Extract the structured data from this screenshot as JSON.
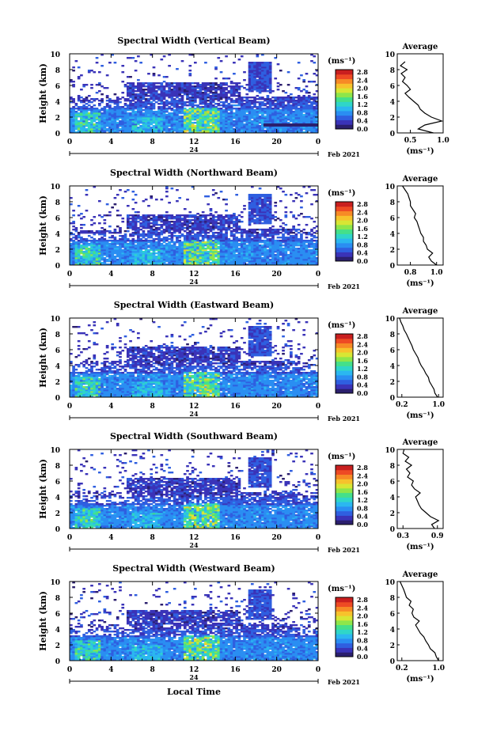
{
  "x_title": "Local Time",
  "colorbar": {
    "unit": "(ms⁻¹)",
    "ticks": [
      "2.8",
      "2.4",
      "2.0",
      "1.6",
      "1.2",
      "0.8",
      "0.4",
      "0.0"
    ],
    "colors": [
      "#2b1f6e",
      "#3a33b8",
      "#2f5fe0",
      "#2a8ef2",
      "#2bb7f0",
      "#2fd6c8",
      "#44e08a",
      "#8ee64a",
      "#d8e634",
      "#f7c22c",
      "#f78a26",
      "#ee4a24",
      "#c91f1f"
    ]
  },
  "chart_data": [
    {
      "type": "heatmap",
      "title": "Spectral Width (Vertical Beam)",
      "ylabel": "Height (km)",
      "xlabel": "Local Time",
      "x_ticks": [
        "0",
        "4",
        "8",
        "12",
        "16",
        "20",
        "0"
      ],
      "y_ticks": [
        "0",
        "2",
        "4",
        "6",
        "8",
        "10"
      ],
      "xlim": [
        0,
        24
      ],
      "ylim": [
        0,
        10
      ],
      "date_day": "24",
      "date_month": "Feb 2021",
      "average": {
        "title": "Average",
        "xlabel": "(ms⁻¹)",
        "x_ticks": [
          "0.5",
          "1.0"
        ],
        "xlim": [
          0.3,
          1.0
        ],
        "height": [
          0,
          0.5,
          1,
          1.5,
          2,
          2.5,
          3,
          3.5,
          4,
          4.5,
          5,
          5.5,
          6,
          6.5,
          7,
          7.5,
          8,
          8.5,
          9
        ],
        "value": [
          0.85,
          0.62,
          0.72,
          0.98,
          0.82,
          0.72,
          0.65,
          0.62,
          0.55,
          0.48,
          0.42,
          0.5,
          0.45,
          0.38,
          0.42,
          0.36,
          0.45,
          0.35,
          0.42
        ]
      }
    },
    {
      "type": "heatmap",
      "title": "Spectral Width (Northward Beam)",
      "ylabel": "Height (km)",
      "xlabel": "Local Time",
      "x_ticks": [
        "0",
        "4",
        "8",
        "12",
        "16",
        "20",
        "0"
      ],
      "y_ticks": [
        "0",
        "2",
        "4",
        "6",
        "8",
        "10"
      ],
      "xlim": [
        0,
        24
      ],
      "ylim": [
        0,
        10
      ],
      "date_day": "24",
      "date_month": "Feb 2021",
      "average": {
        "title": "Average",
        "xlabel": "(ms⁻¹)",
        "x_ticks": [
          "0.8",
          "1.0"
        ],
        "xlim": [
          0.7,
          1.05
        ],
        "height": [
          0,
          0.5,
          1,
          1.5,
          2,
          2.5,
          3,
          3.5,
          4,
          4.5,
          5,
          5.5,
          6,
          6.5,
          7,
          7.5,
          8,
          8.5,
          9,
          9.5,
          10
        ],
        "value": [
          1.0,
          0.96,
          0.94,
          0.97,
          0.93,
          0.92,
          0.9,
          0.9,
          0.88,
          0.87,
          0.86,
          0.85,
          0.83,
          0.84,
          0.82,
          0.8,
          0.8,
          0.79,
          0.78,
          0.76,
          0.74
        ]
      }
    },
    {
      "type": "heatmap",
      "title": "Spectral Width (Eastward Beam)",
      "ylabel": "Height (km)",
      "xlabel": "Local Time",
      "x_ticks": [
        "0",
        "4",
        "8",
        "12",
        "16",
        "20",
        "0"
      ],
      "y_ticks": [
        "0",
        "2",
        "4",
        "6",
        "8",
        "10"
      ],
      "xlim": [
        0,
        24
      ],
      "ylim": [
        0,
        10
      ],
      "date_day": "24",
      "date_month": "Feb 2021",
      "average": {
        "title": "Average",
        "xlabel": "(ms⁻¹)",
        "x_ticks": [
          "0.2",
          "1.0"
        ],
        "xlim": [
          0.1,
          1.1
        ],
        "height": [
          0,
          0.5,
          1,
          1.5,
          2,
          2.5,
          3,
          3.5,
          4,
          4.5,
          5,
          5.5,
          6,
          6.5,
          7,
          7.5,
          8,
          8.5,
          9,
          9.5,
          10
        ],
        "value": [
          0.98,
          0.92,
          0.9,
          0.85,
          0.8,
          0.78,
          0.72,
          0.68,
          0.62,
          0.58,
          0.55,
          0.5,
          0.45,
          0.42,
          0.38,
          0.34,
          0.3,
          0.25,
          0.22,
          0.18,
          0.15
        ]
      }
    },
    {
      "type": "heatmap",
      "title": "Spectral Width (Southward Beam)",
      "ylabel": "Height (km)",
      "xlabel": "Local Time",
      "x_ticks": [
        "0",
        "4",
        "8",
        "12",
        "16",
        "20",
        "0"
      ],
      "y_ticks": [
        "0",
        "2",
        "4",
        "6",
        "8",
        "10"
      ],
      "xlim": [
        0,
        24
      ],
      "ylim": [
        0,
        10
      ],
      "date_day": "24",
      "date_month": "Feb 2021",
      "average": {
        "title": "Average",
        "xlabel": "(ms⁻¹)",
        "x_ticks": [
          "0.3",
          "0.9"
        ],
        "xlim": [
          0.2,
          1.0
        ],
        "height": [
          0,
          0.5,
          1,
          1.5,
          2,
          2.5,
          3,
          3.5,
          4,
          4.5,
          5,
          5.5,
          6,
          6.5,
          7,
          7.5,
          8,
          8.5,
          9,
          9.5,
          10
        ],
        "value": [
          0.85,
          0.8,
          0.92,
          0.78,
          0.7,
          0.62,
          0.58,
          0.55,
          0.52,
          0.6,
          0.5,
          0.45,
          0.48,
          0.38,
          0.42,
          0.36,
          0.45,
          0.34,
          0.4,
          0.3,
          0.32
        ]
      }
    },
    {
      "type": "heatmap",
      "title": "Spectral Width (Westward Beam)",
      "ylabel": "Height (km)",
      "xlabel": "Local Time",
      "x_ticks": [
        "0",
        "4",
        "8",
        "12",
        "16",
        "20",
        "0"
      ],
      "y_ticks": [
        "0",
        "2",
        "4",
        "6",
        "8",
        "10"
      ],
      "xlim": [
        0,
        24
      ],
      "ylim": [
        0,
        10
      ],
      "date_day": "24",
      "date_month": "Feb 2021",
      "average": {
        "title": "Average",
        "xlabel": "(ms⁻¹)",
        "x_ticks": [
          "0.2",
          "1.0"
        ],
        "xlim": [
          0.1,
          1.1
        ],
        "height": [
          0,
          0.5,
          1,
          1.5,
          2,
          2.5,
          3,
          3.5,
          4,
          4.5,
          5,
          5.5,
          6,
          6.5,
          7,
          7.5,
          8,
          8.5,
          9,
          9.5,
          10
        ],
        "value": [
          1.0,
          0.95,
          0.92,
          0.82,
          0.78,
          0.72,
          0.68,
          0.6,
          0.55,
          0.5,
          0.58,
          0.46,
          0.42,
          0.45,
          0.36,
          0.4,
          0.3,
          0.27,
          0.24,
          0.2,
          0.16
        ]
      }
    }
  ]
}
